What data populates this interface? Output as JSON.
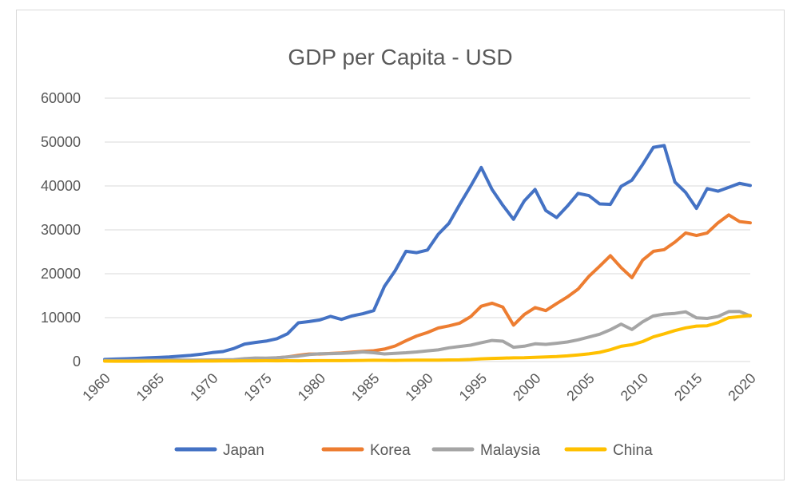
{
  "chart_data": {
    "type": "line",
    "title": "GDP per Capita - USD",
    "xlabel": "",
    "ylabel": "",
    "xlim": [
      1960,
      2020
    ],
    "ylim": [
      0,
      60000
    ],
    "y_ticks": [
      "0",
      "10000",
      "20000",
      "30000",
      "40000",
      "50000",
      "60000"
    ],
    "x_ticks": [
      "1960",
      "1965",
      "1970",
      "1975",
      "1980",
      "1985",
      "1990",
      "1995",
      "2000",
      "2005",
      "2010",
      "2015",
      "2020"
    ],
    "grid": "horizontal",
    "legend_position": "bottom",
    "x": [
      1960,
      1961,
      1962,
      1963,
      1964,
      1965,
      1966,
      1967,
      1968,
      1969,
      1970,
      1971,
      1972,
      1973,
      1974,
      1975,
      1976,
      1977,
      1978,
      1979,
      1980,
      1981,
      1982,
      1983,
      1984,
      1985,
      1986,
      1987,
      1988,
      1989,
      1990,
      1991,
      1992,
      1993,
      1994,
      1995,
      1996,
      1997,
      1998,
      1999,
      2000,
      2001,
      2002,
      2003,
      2004,
      2005,
      2006,
      2007,
      2008,
      2009,
      2010,
      2011,
      2012,
      2013,
      2014,
      2015,
      2016,
      2017,
      2018,
      2019,
      2020
    ],
    "series": [
      {
        "name": "Japan",
        "color": "#4472c4",
        "values": [
          480,
          560,
          630,
          720,
          840,
          920,
          1060,
          1230,
          1420,
          1670,
          2030,
          2270,
          2970,
          3990,
          4350,
          4660,
          5200,
          6330,
          8820,
          9100,
          9470,
          10300,
          9600,
          10400,
          10900,
          11600,
          17100,
          20700,
          25100,
          24800,
          25400,
          29000,
          31500,
          35800,
          39900,
          44200,
          39200,
          35600,
          32400,
          36600,
          39200,
          34400,
          32800,
          35400,
          38300,
          37800,
          35900,
          35800,
          39900,
          41300,
          44900,
          48800,
          49200,
          40900,
          38500,
          34900,
          39400,
          38800,
          39700,
          40600,
          40100
        ]
      },
      {
        "name": "Korea",
        "color": "#ed7d31",
        "values": [
          160,
          90,
          110,
          150,
          130,
          110,
          130,
          160,
          200,
          250,
          280,
          300,
          330,
          410,
          570,
          620,
          830,
          1060,
          1420,
          1710,
          1700,
          1830,
          1940,
          2120,
          2310,
          2460,
          2830,
          3550,
          4750,
          5810,
          6610,
          7640,
          8130,
          8740,
          10200,
          12600,
          13300,
          12400,
          8300,
          10700,
          12300,
          11600,
          13200,
          14700,
          16500,
          19400,
          21700,
          24100,
          21400,
          19100,
          23100,
          25100,
          25500,
          27200,
          29300,
          28700,
          29300,
          31600,
          33400,
          31900,
          31600
        ]
      },
      {
        "name": "Malaysia",
        "color": "#a5a5a5",
        "values": [
          230,
          235,
          240,
          290,
          300,
          330,
          340,
          340,
          330,
          350,
          360,
          380,
          440,
          660,
          800,
          760,
          860,
          1030,
          1240,
          1580,
          1790,
          1800,
          1850,
          1980,
          2180,
          2000,
          1730,
          1880,
          2000,
          2180,
          2440,
          2650,
          3120,
          3430,
          3730,
          4300,
          4800,
          4630,
          3260,
          3490,
          4040,
          3910,
          4170,
          4460,
          4950,
          5590,
          6210,
          7240,
          8530,
          7290,
          9040,
          10400,
          10800,
          10970,
          11320,
          9960,
          9820,
          10260,
          11380,
          11410,
          10400
        ]
      },
      {
        "name": "China",
        "color": "#ffc000",
        "values": [
          90,
          75,
          70,
          74,
          85,
          98,
          104,
          96,
          91,
          100,
          113,
          119,
          132,
          157,
          160,
          178,
          165,
          185,
          156,
          184,
          195,
          197,
          203,
          225,
          251,
          294,
          281,
          252,
          284,
          311,
          318,
          333,
          366,
          377,
          473,
          610,
          709,
          782,
          829,
          873,
          959,
          1053,
          1149,
          1289,
          1509,
          1753,
          2099,
          2694,
          3468,
          3832,
          4550,
          5618,
          6317,
          7051,
          7679,
          8066,
          8148,
          8879,
          9977,
          10217,
          10500
        ]
      }
    ]
  }
}
